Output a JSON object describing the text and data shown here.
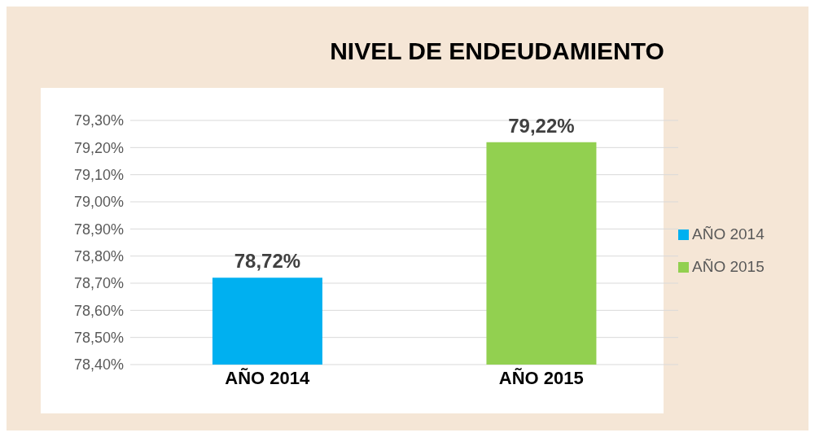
{
  "chart_data": {
    "type": "bar",
    "title": "NIVEL DE ENDEUDAMIENTO",
    "categories": [
      "AÑO 2014",
      "AÑO 2015"
    ],
    "series": [
      {
        "name": "AÑO 2014",
        "color": "#00b0f0",
        "values": [
          78.72,
          null
        ],
        "value_labels": [
          "78,72%",
          null
        ]
      },
      {
        "name": "AÑO 2015",
        "color": "#92d050",
        "values": [
          null,
          79.22
        ],
        "value_labels": [
          null,
          "79,22%"
        ]
      }
    ],
    "ylim": [
      78.4,
      79.3
    ],
    "yticks": [
      {
        "value": 78.4,
        "label": "78,40%"
      },
      {
        "value": 78.5,
        "label": "78,50%"
      },
      {
        "value": 78.6,
        "label": "78,60%"
      },
      {
        "value": 78.7,
        "label": "78,70%"
      },
      {
        "value": 78.8,
        "label": "78,80%"
      },
      {
        "value": 78.9,
        "label": "78,90%"
      },
      {
        "value": 79.0,
        "label": "79,00%"
      },
      {
        "value": 79.1,
        "label": "79,10%"
      },
      {
        "value": 79.2,
        "label": "79,20%"
      },
      {
        "value": 79.3,
        "label": "79,30%"
      }
    ],
    "grid": "y",
    "legend": "right"
  }
}
